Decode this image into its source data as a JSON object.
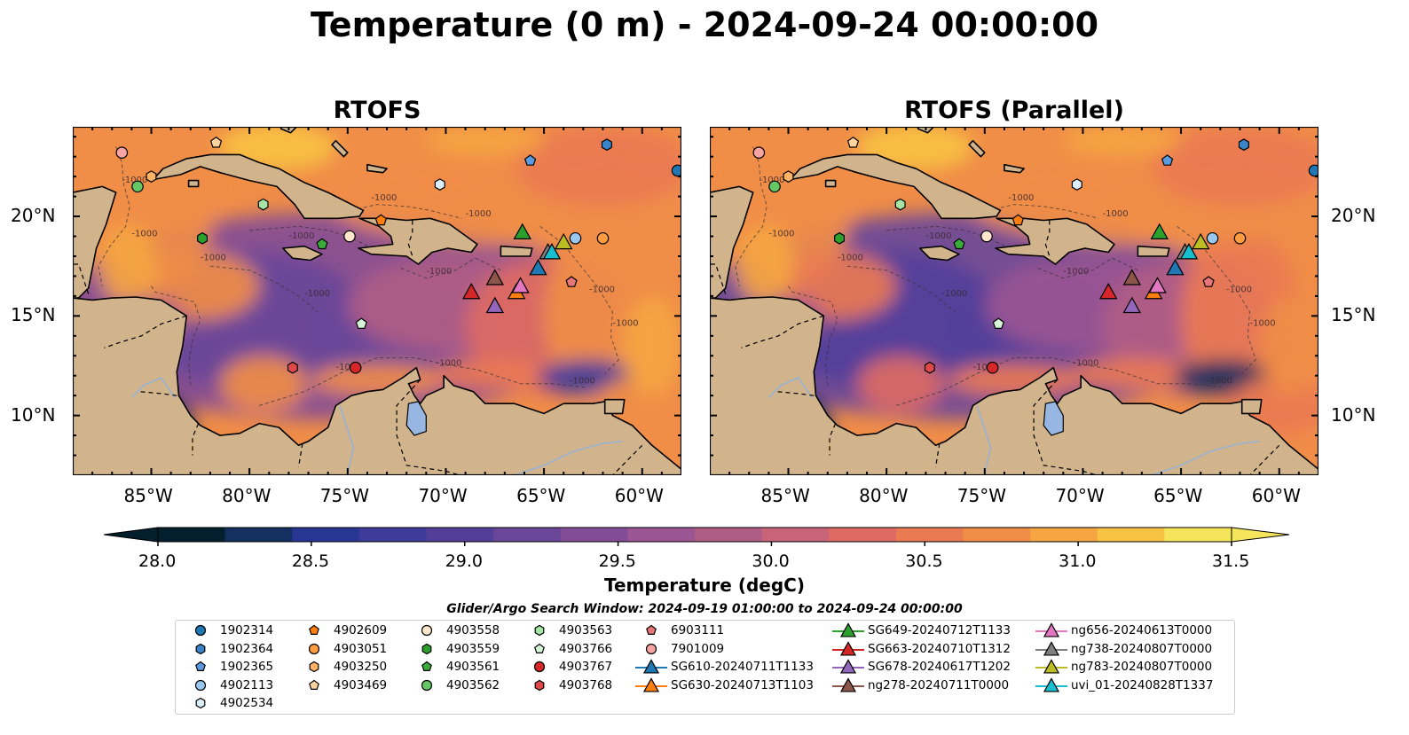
{
  "title": "Temperature (0 m) - 2024-09-24 00:00:00",
  "panels": [
    {
      "title": "RTOFS",
      "variant": 0
    },
    {
      "title": "RTOFS (Parallel)",
      "variant": 1
    }
  ],
  "map": {
    "lon_range": [
      -89,
      -58
    ],
    "lat_range": [
      7,
      24.5
    ],
    "lon_ticks": [
      {
        "value": -85,
        "label": "85°W"
      },
      {
        "value": -80,
        "label": "80°W"
      },
      {
        "value": -75,
        "label": "75°W"
      },
      {
        "value": -70,
        "label": "70°W"
      },
      {
        "value": -65,
        "label": "65°W"
      },
      {
        "value": -60,
        "label": "60°W"
      }
    ],
    "lat_ticks": [
      {
        "value": 10,
        "label": "10°N"
      },
      {
        "value": 15,
        "label": "15°N"
      },
      {
        "value": 20,
        "label": "20°N"
      }
    ],
    "land_color": "#d2b48c",
    "lake_color": "#97b6e1",
    "contour_label": "-1000"
  },
  "colorbar": {
    "label": "Temperature (degC)",
    "min": 28.0,
    "max": 31.5,
    "ticks": [
      "28.0",
      "28.5",
      "29.0",
      "29.5",
      "30.0",
      "30.5",
      "31.0",
      "31.5"
    ],
    "colors": [
      "#04202e",
      "#143061",
      "#283593",
      "#3d3c9b",
      "#533f9a",
      "#6a4699",
      "#834c96",
      "#9a5592",
      "#b05d85",
      "#c76478",
      "#dd6a63",
      "#ea7a52",
      "#f08d47",
      "#f5a542",
      "#f8c243",
      "#f5e55b"
    ]
  },
  "search_window": "Glider/Argo Search Window: 2024-09-19 01:00:00 to 2024-09-24 00:00:00",
  "legend": [
    {
      "label": "1902314",
      "shape": "circle",
      "color": "#1f77b4"
    },
    {
      "label": "1902364",
      "shape": "hexagon",
      "color": "#3a84c9"
    },
    {
      "label": "1902365",
      "shape": "pentagon",
      "color": "#5a9be0"
    },
    {
      "label": "4902113",
      "shape": "circle",
      "color": "#9ac7ee"
    },
    {
      "label": "4902534",
      "shape": "hexagon",
      "color": "#ddeefb"
    },
    {
      "label": "4902609",
      "shape": "pentagon",
      "color": "#ff7f0e"
    },
    {
      "label": "4903051",
      "shape": "circle",
      "color": "#ff9c3f"
    },
    {
      "label": "4903250",
      "shape": "hexagon",
      "color": "#ffb366"
    },
    {
      "label": "4903469",
      "shape": "pentagon",
      "color": "#ffd3a0"
    },
    {
      "label": "4903558",
      "shape": "circle",
      "color": "#ffe6cc"
    },
    {
      "label": "4903559",
      "shape": "hexagon",
      "color": "#2ca02c"
    },
    {
      "label": "4903561",
      "shape": "pentagon",
      "color": "#3aab3a"
    },
    {
      "label": "4903562",
      "shape": "circle",
      "color": "#66c766"
    },
    {
      "label": "4903563",
      "shape": "hexagon",
      "color": "#a6e3a6"
    },
    {
      "label": "4903766",
      "shape": "pentagon",
      "color": "#d6f5d6"
    },
    {
      "label": "4903767",
      "shape": "circle",
      "color": "#d62728"
    },
    {
      "label": "4903768",
      "shape": "hexagon",
      "color": "#e0484a"
    },
    {
      "label": "6903111",
      "shape": "pentagon",
      "color": "#e87577"
    },
    {
      "label": "7901009",
      "shape": "circle",
      "color": "#f7a2a3"
    },
    {
      "label": "SG610-20240711T1133",
      "shape": "triangle",
      "color": "#1f77b4"
    },
    {
      "label": "SG630-20240713T1103",
      "shape": "triangle",
      "color": "#ff7f0e"
    },
    {
      "label": "SG649-20240712T1133",
      "shape": "triangle",
      "color": "#2ca02c"
    },
    {
      "label": "SG663-20240710T1312",
      "shape": "triangle",
      "color": "#d62728"
    },
    {
      "label": "SG678-20240617T1202",
      "shape": "triangle",
      "color": "#9467bd"
    },
    {
      "label": "ng278-20240711T0000",
      "shape": "triangle",
      "color": "#8c564b"
    },
    {
      "label": "ng656-20240613T0000",
      "shape": "triangle",
      "color": "#e377c2"
    },
    {
      "label": "ng738-20240807T0000",
      "shape": "triangle",
      "color": "#7f7f7f"
    },
    {
      "label": "ng783-20240807T0000",
      "shape": "triangle",
      "color": "#bcbd22"
    },
    {
      "label": "uvi_01-20240828T1337",
      "shape": "triangle",
      "color": "#17becf"
    }
  ],
  "markers": [
    {
      "id": "1902314",
      "lon": -58.2,
      "lat": 22.3
    },
    {
      "id": "1902364",
      "lon": -61.8,
      "lat": 23.6
    },
    {
      "id": "1902365",
      "lon": -65.7,
      "lat": 22.8
    },
    {
      "id": "4902113",
      "lon": -63.4,
      "lat": 18.9
    },
    {
      "id": "4902534",
      "lon": -70.3,
      "lat": 21.6
    },
    {
      "id": "4902609",
      "lon": -73.3,
      "lat": 19.8
    },
    {
      "id": "4903051",
      "lon": -62.0,
      "lat": 18.9
    },
    {
      "id": "4903250",
      "lon": -85.0,
      "lat": 22.0
    },
    {
      "id": "4903469",
      "lon": -81.7,
      "lat": 23.7
    },
    {
      "id": "4903558",
      "lon": -74.9,
      "lat": 19.0
    },
    {
      "id": "4903559",
      "lon": -82.4,
      "lat": 18.9
    },
    {
      "id": "4903561",
      "lon": -76.3,
      "lat": 18.6
    },
    {
      "id": "4903562",
      "lon": -85.7,
      "lat": 21.5
    },
    {
      "id": "4903563",
      "lon": -79.3,
      "lat": 20.6
    },
    {
      "id": "4903766",
      "lon": -74.3,
      "lat": 14.6
    },
    {
      "id": "4903767",
      "lon": -74.6,
      "lat": 12.4
    },
    {
      "id": "4903768",
      "lon": -77.8,
      "lat": 12.4
    },
    {
      "id": "6903111",
      "lon": -63.6,
      "lat": 16.7
    },
    {
      "id": "7901009",
      "lon": -86.5,
      "lat": 23.2
    },
    {
      "id": "SG610-20240711T1133",
      "lon": -65.3,
      "lat": 17.4
    },
    {
      "id": "SG630-20240713T1103",
      "lon": -66.4,
      "lat": 16.2
    },
    {
      "id": "SG649-20240712T1133",
      "lon": -66.1,
      "lat": 19.2
    },
    {
      "id": "SG663-20240710T1312",
      "lon": -68.7,
      "lat": 16.2
    },
    {
      "id": "SG678-20240617T1202",
      "lon": -67.5,
      "lat": 15.5
    },
    {
      "id": "ng278-20240711T0000",
      "lon": -67.5,
      "lat": 16.9
    },
    {
      "id": "ng656-20240613T0000",
      "lon": -66.2,
      "lat": 16.5
    },
    {
      "id": "ng738-20240807T0000",
      "lon": -64.8,
      "lat": 18.2
    },
    {
      "id": "ng783-20240807T0000",
      "lon": -64.0,
      "lat": 18.7
    },
    {
      "id": "uvi_01-20240828T1337",
      "lon": -64.6,
      "lat": 18.2
    }
  ]
}
